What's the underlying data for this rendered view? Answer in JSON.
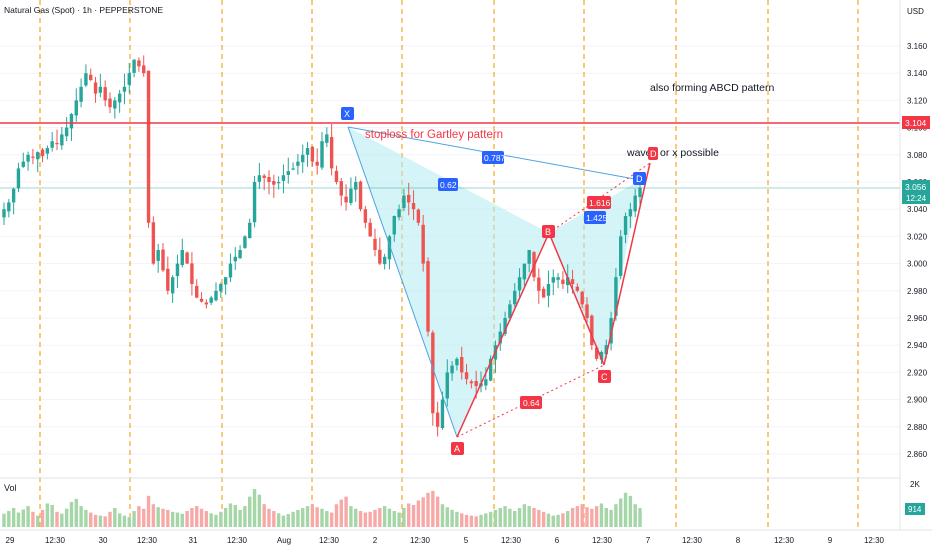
{
  "header": {
    "symbol_title": "Natural Gas (Spot) · 1h · PEPPERSTONE"
  },
  "price_axis": {
    "currency": "USD",
    "ticks": [
      "3.160",
      "3.140",
      "3.120",
      "3.100",
      "3.080",
      "3.060",
      "3.040",
      "3.020",
      "3.000",
      "2.980",
      "2.960",
      "2.940",
      "2.920",
      "2.900",
      "2.880",
      "2.860"
    ],
    "stop_line_label": "3.104",
    "last_price_label": "3.056",
    "countdown_label": "12:24"
  },
  "volume_axis": {
    "top_label": "2K",
    "current_label": "914"
  },
  "volume_pane": {
    "label": "Vol"
  },
  "time_axis": {
    "ticks": [
      "29",
      "12:30",
      "30",
      "12:30",
      "31",
      "12:30",
      "Aug",
      "12:30",
      "2",
      "12:30",
      "5",
      "12:30",
      "6",
      "12:30",
      "7",
      "12:30",
      "8",
      "12:30",
      "9",
      "12:30"
    ]
  },
  "annotations": {
    "stoploss_text": "stoploss for Gartley pattern",
    "abcd_text": "also forming ABCD pattern",
    "wave_text": "wave",
    "wave_badge": "D",
    "wave_suffix": "or x possible",
    "point_x": "X",
    "point_a": "A",
    "point_b": "B",
    "point_c": "C",
    "point_d": "D",
    "ratio_xb": "0.787",
    "ratio_ab": "0.62",
    "ratio_bd": "1.616",
    "ratio_xd": "1.425",
    "ratio_ac": "0.64"
  },
  "colors": {
    "up": "#26a69a",
    "down": "#ef5350",
    "stop_line": "#f23645",
    "pattern_fill": "#b2ebf2",
    "pattern_line": "#4fa3e0",
    "ab_line": "#f23645",
    "badge_blue": "#2962ff",
    "session_line": "#f5a623",
    "last_price_bg": "#26a69a",
    "volume_up": "#a5d6a7",
    "volume_down": "#f7a9a8"
  },
  "chart_data": {
    "type": "candlestick",
    "title": "Natural Gas (Spot) · 1h · PEPPERSTONE",
    "ylabel": "USD",
    "ylim": [
      2.845,
      3.172
    ],
    "stoploss_level": 3.104,
    "last_price": 3.056,
    "harmonic_points": [
      {
        "label": "X",
        "price": 3.1
      },
      {
        "label": "A",
        "price": 2.873
      },
      {
        "label": "B",
        "price": 3.017
      },
      {
        "label": "C",
        "price": 2.927
      },
      {
        "label": "D",
        "price": 3.056
      }
    ],
    "close_path": [
      3.04,
      3.045,
      3.055,
      3.07,
      3.075,
      3.08,
      3.078,
      3.082,
      3.079,
      3.085,
      3.09,
      3.088,
      3.095,
      3.1,
      3.11,
      3.12,
      3.13,
      3.14,
      3.135,
      3.125,
      3.13,
      3.12,
      3.115,
      3.12,
      3.125,
      3.13,
      3.14,
      3.15,
      3.145,
      3.14,
      3.03,
      3.0,
      3.01,
      2.995,
      2.98,
      2.99,
      3.0,
      3.01,
      3.0,
      2.985,
      2.975,
      2.972,
      2.97,
      2.975,
      2.98,
      2.985,
      2.99,
      3.0,
      3.005,
      3.01,
      3.02,
      3.03,
      3.06,
      3.065,
      3.063,
      3.06,
      3.058,
      3.06,
      3.065,
      3.068,
      3.07,
      3.075,
      3.08,
      3.085,
      3.075,
      3.072,
      3.09,
      3.095,
      3.07,
      3.06,
      3.05,
      3.045,
      3.055,
      3.06,
      3.04,
      3.03,
      3.02,
      3.01,
      3.0,
      3.005,
      3.02,
      3.035,
      3.04,
      3.05,
      3.045,
      3.04,
      3.03,
      3.0,
      2.95,
      2.89,
      2.88,
      2.9,
      2.92,
      2.925,
      2.93,
      2.92,
      2.915,
      2.912,
      2.91,
      2.912,
      2.915,
      2.93,
      2.94,
      2.95,
      2.96,
      2.97,
      2.98,
      2.99,
      3.0,
      3.01,
      2.99,
      2.98,
      2.975,
      2.985,
      2.99,
      2.99,
      2.985,
      2.99,
      2.985,
      2.98,
      2.97,
      2.96,
      2.94,
      2.93,
      2.935,
      2.94,
      2.96,
      2.99,
      3.02,
      3.035,
      3.04,
      3.05,
      3.056
    ],
    "volume_path": [
      0.35,
      0.42,
      0.5,
      0.38,
      0.46,
      0.55,
      0.4,
      0.3,
      0.45,
      0.62,
      0.58,
      0.4,
      0.35,
      0.48,
      0.66,
      0.74,
      0.55,
      0.45,
      0.38,
      0.32,
      0.3,
      0.28,
      0.4,
      0.5,
      0.36,
      0.3,
      0.26,
      0.42,
      0.55,
      0.48,
      0.82,
      0.6,
      0.52,
      0.48,
      0.45,
      0.4,
      0.38,
      0.35,
      0.42,
      0.5,
      0.55,
      0.48,
      0.42,
      0.36,
      0.32,
      0.4,
      0.5,
      0.62,
      0.58,
      0.45,
      0.55,
      0.8,
      1.0,
      0.85,
      0.6,
      0.48,
      0.42,
      0.36,
      0.3,
      0.34,
      0.4,
      0.45,
      0.5,
      0.55,
      0.6,
      0.52,
      0.48,
      0.42,
      0.38,
      0.6,
      0.72,
      0.8,
      0.55,
      0.48,
      0.42,
      0.38,
      0.4,
      0.45,
      0.5,
      0.55,
      0.48,
      0.42,
      0.38,
      0.5,
      0.62,
      0.58,
      0.7,
      0.78,
      0.9,
      0.95,
      0.8,
      0.6,
      0.52,
      0.45,
      0.4,
      0.36,
      0.32,
      0.3,
      0.28,
      0.32,
      0.36,
      0.4,
      0.45,
      0.5,
      0.55,
      0.48,
      0.42,
      0.5,
      0.6,
      0.55,
      0.5,
      0.45,
      0.4,
      0.35,
      0.3,
      0.32,
      0.36,
      0.42,
      0.5,
      0.55,
      0.6,
      0.52,
      0.48,
      0.55,
      0.62,
      0.5,
      0.45,
      0.6,
      0.75,
      0.9,
      0.82,
      0.6,
      0.5
    ]
  }
}
